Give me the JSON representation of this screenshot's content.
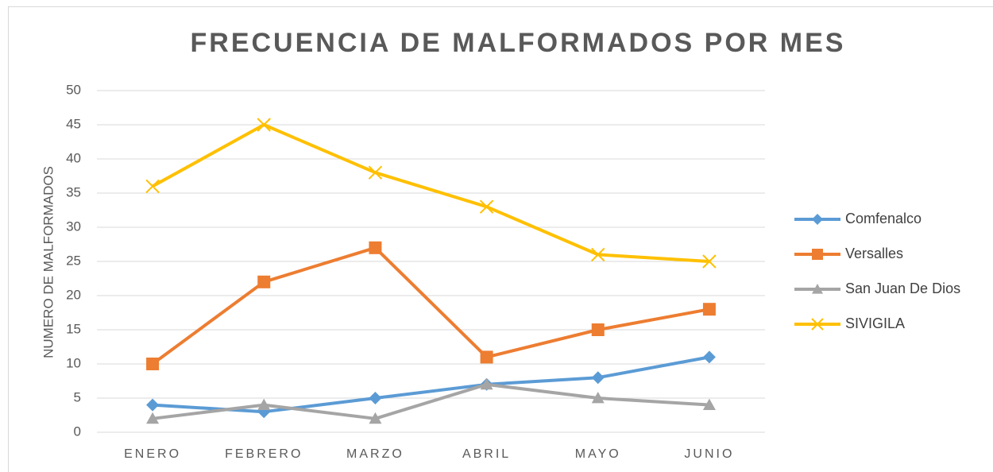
{
  "chart_data": {
    "type": "line",
    "title": "FRECUENCIA DE MALFORMADOS POR MES",
    "y_label": "NUMERO DE MALFORMADOS",
    "categories": [
      "ENERO",
      "FEBRERO",
      "MARZO",
      "ABRIL",
      "MAYO",
      "JUNIO"
    ],
    "series": [
      {
        "name": "Comfenalco",
        "color": "#5b9bd5",
        "marker": "diamond",
        "values": [
          4,
          3,
          5,
          7,
          8,
          11
        ]
      },
      {
        "name": "Versalles",
        "color": "#ed7d31",
        "marker": "square",
        "values": [
          10,
          22,
          27,
          11,
          15,
          18
        ]
      },
      {
        "name": "San Juan De Dios",
        "color": "#a5a5a5",
        "marker": "triangle",
        "values": [
          2,
          4,
          2,
          7,
          5,
          4
        ]
      },
      {
        "name": "SIVIGILA",
        "color": "#ffc000",
        "marker": "x",
        "values": [
          36,
          45,
          38,
          33,
          26,
          25
        ]
      }
    ],
    "ylim": [
      0,
      50
    ],
    "yticks": [
      0,
      5,
      10,
      15,
      20,
      25,
      30,
      35,
      40,
      45,
      50
    ],
    "grid": true,
    "legend": "right"
  }
}
